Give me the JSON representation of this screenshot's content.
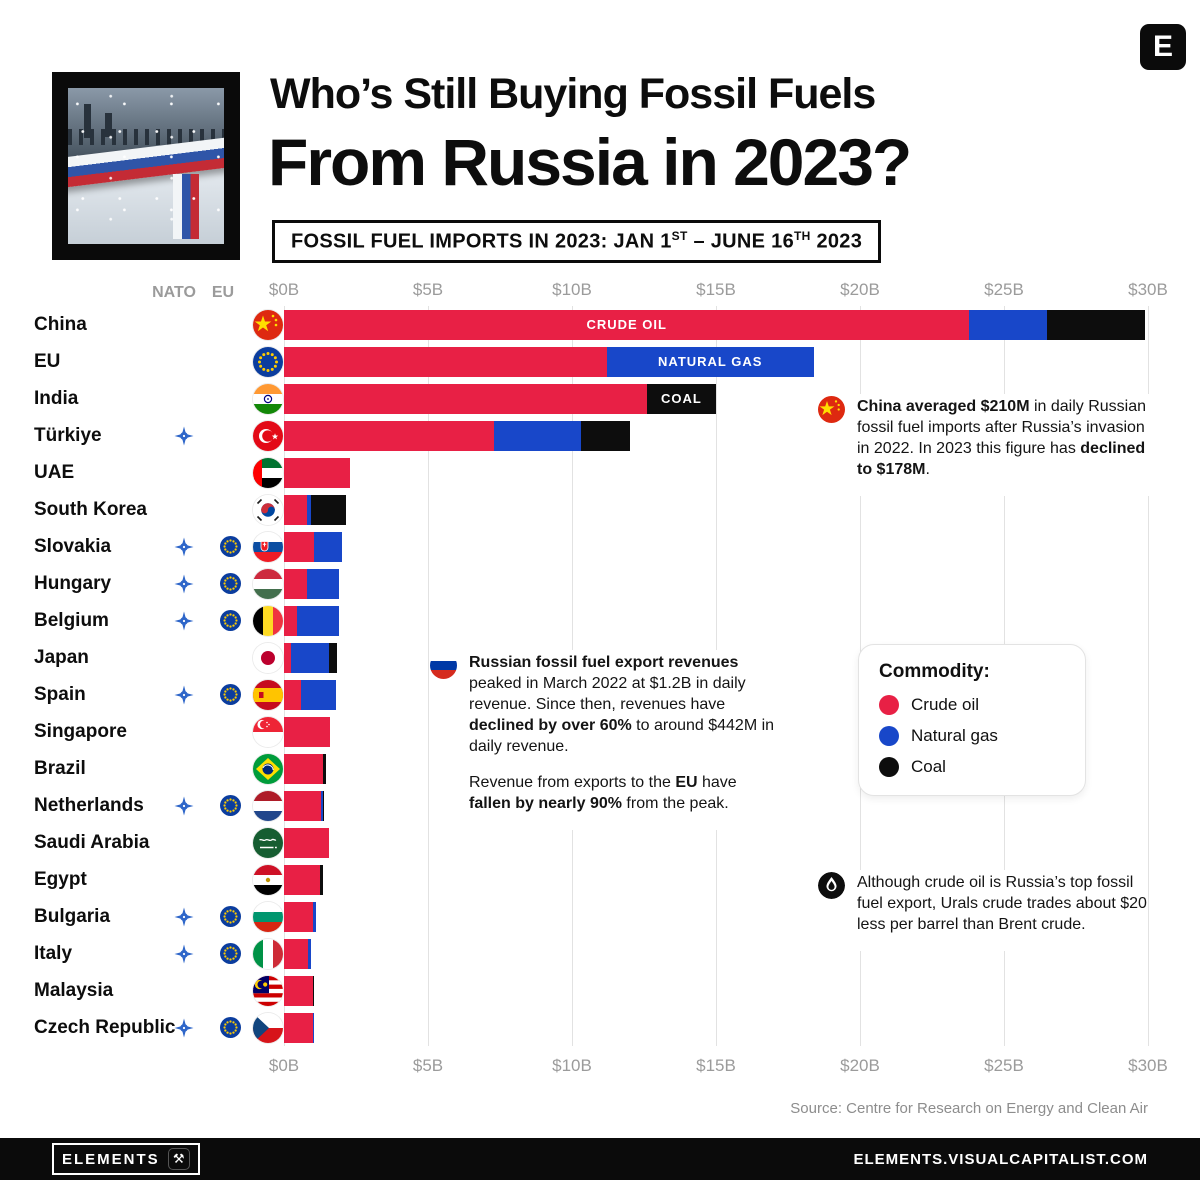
{
  "header": {
    "logo_letter": "E",
    "title_line1": "Who’s Still Buying Fossil Fuels",
    "title_line2": "From Russia in 2023?",
    "subtitle_prefix": "FOSSIL FUEL IMPORTS IN 2023: JAN 1",
    "subtitle_sup1": "ST",
    "subtitle_mid": " – JUNE 16",
    "subtitle_sup2": "TH",
    "subtitle_suffix": " 2023"
  },
  "chart_data": {
    "type": "bar",
    "orientation": "horizontal",
    "stacked": true,
    "unit": "USD billions",
    "xlim": [
      0,
      30
    ],
    "x_ticks": [
      "$0B",
      "$5B",
      "$10B",
      "$15B",
      "$20B",
      "$25B",
      "$30B"
    ],
    "column_headers": {
      "nato": "NATO",
      "eu": "EU"
    },
    "series": [
      {
        "key": "crude",
        "name": "Crude oil",
        "color": "#e82045"
      },
      {
        "key": "gas",
        "name": "Natural gas",
        "color": "#1847c9"
      },
      {
        "key": "coal",
        "name": "Coal",
        "color": "#0d0d0d"
      }
    ],
    "segment_labels": [
      {
        "country": "China",
        "segment": "crude",
        "text": "CRUDE OIL"
      },
      {
        "country": "EU",
        "segment": "gas",
        "text": "NATURAL GAS"
      },
      {
        "country": "India",
        "segment": "coal",
        "text": "COAL"
      }
    ],
    "rows": [
      {
        "country": "China",
        "flag": "china",
        "nato": false,
        "eu": false,
        "crude": 23.8,
        "gas": 2.7,
        "coal": 3.4
      },
      {
        "country": "EU",
        "flag": "eu",
        "nato": false,
        "eu": false,
        "crude": 11.2,
        "gas": 7.2,
        "coal": 0
      },
      {
        "country": "India",
        "flag": "india",
        "nato": false,
        "eu": false,
        "crude": 12.6,
        "gas": 0,
        "coal": 2.4
      },
      {
        "country": "Türkiye",
        "flag": "turkiye",
        "nato": true,
        "eu": false,
        "crude": 7.3,
        "gas": 3.0,
        "coal": 1.7
      },
      {
        "country": "UAE",
        "flag": "uae",
        "nato": false,
        "eu": false,
        "crude": 2.3,
        "gas": 0,
        "coal": 0
      },
      {
        "country": "South Korea",
        "flag": "south-korea",
        "nato": false,
        "eu": false,
        "crude": 0.8,
        "gas": 0.15,
        "coal": 1.2
      },
      {
        "country": "Slovakia",
        "flag": "slovakia",
        "nato": true,
        "eu": true,
        "crude": 1.05,
        "gas": 0.95,
        "coal": 0
      },
      {
        "country": "Hungary",
        "flag": "hungary",
        "nato": true,
        "eu": true,
        "crude": 0.8,
        "gas": 1.1,
        "coal": 0
      },
      {
        "country": "Belgium",
        "flag": "belgium",
        "nato": true,
        "eu": true,
        "crude": 0.45,
        "gas": 1.45,
        "coal": 0
      },
      {
        "country": "Japan",
        "flag": "japan",
        "nato": false,
        "eu": false,
        "crude": 0.25,
        "gas": 1.3,
        "coal": 0.3
      },
      {
        "country": "Spain",
        "flag": "spain",
        "nato": true,
        "eu": true,
        "crude": 0.6,
        "gas": 1.2,
        "coal": 0
      },
      {
        "country": "Singapore",
        "flag": "singapore",
        "nato": false,
        "eu": false,
        "crude": 1.6,
        "gas": 0,
        "coal": 0
      },
      {
        "country": "Brazil",
        "flag": "brazil",
        "nato": false,
        "eu": false,
        "crude": 1.35,
        "gas": 0,
        "coal": 0.1
      },
      {
        "country": "Netherlands",
        "flag": "netherlands",
        "nato": true,
        "eu": true,
        "crude": 1.3,
        "gas": 0.05,
        "coal": 0.05
      },
      {
        "country": "Saudi Arabia",
        "flag": "saudi-arabia",
        "nato": false,
        "eu": false,
        "crude": 1.55,
        "gas": 0,
        "coal": 0
      },
      {
        "country": "Egypt",
        "flag": "egypt",
        "nato": false,
        "eu": false,
        "crude": 1.25,
        "gas": 0,
        "coal": 0.1
      },
      {
        "country": "Bulgaria",
        "flag": "bulgaria",
        "nato": true,
        "eu": true,
        "crude": 1.0,
        "gas": 0.1,
        "coal": 0
      },
      {
        "country": "Italy",
        "flag": "italy",
        "nato": true,
        "eu": true,
        "crude": 0.85,
        "gas": 0.1,
        "coal": 0
      },
      {
        "country": "Malaysia",
        "flag": "malaysia",
        "nato": false,
        "eu": false,
        "crude": 1.0,
        "gas": 0,
        "coal": 0.05
      },
      {
        "country": "Czech Republic",
        "flag": "czech",
        "nato": true,
        "eu": true,
        "crude": 1.0,
        "gas": 0.05,
        "coal": 0
      }
    ]
  },
  "legend": {
    "title": "Commodity:",
    "items": [
      {
        "label": "Crude oil",
        "color": "#e82045"
      },
      {
        "label": "Natural gas",
        "color": "#1847c9"
      },
      {
        "label": "Coal",
        "color": "#0d0d0d"
      }
    ]
  },
  "notes": {
    "china": {
      "b1": "China averaged $210M",
      "t1": " in daily Russian fossil fuel imports after Russia’s invasion in 2022. In 2023 this figure has ",
      "b2": "declined to $178M",
      "t2": "."
    },
    "russia": {
      "b1": "Russian fossil fuel export revenues",
      "t1": " peaked in March 2022 at $1.2B in daily revenue. Since then, revenues have ",
      "b2": "declined by over 60%",
      "t2": " to around $442M in daily revenue.",
      "t3": "Revenue from exports to the ",
      "b3": "EU",
      "t4": " have ",
      "b4": "fallen by nearly 90%",
      "t5": " from the peak."
    },
    "oil": {
      "t1": "Although crude oil is Russia’s top fossil fuel export, Urals crude trades about $20 less per barrel than Brent crude."
    }
  },
  "source": "Source: Centre for Research on Energy and Clean Air",
  "footer": {
    "brand": "ELEMENTS",
    "site": "ELEMENTS.VISUALCAPITALIST.COM"
  },
  "icons": {
    "elements_logo": "⚒"
  }
}
